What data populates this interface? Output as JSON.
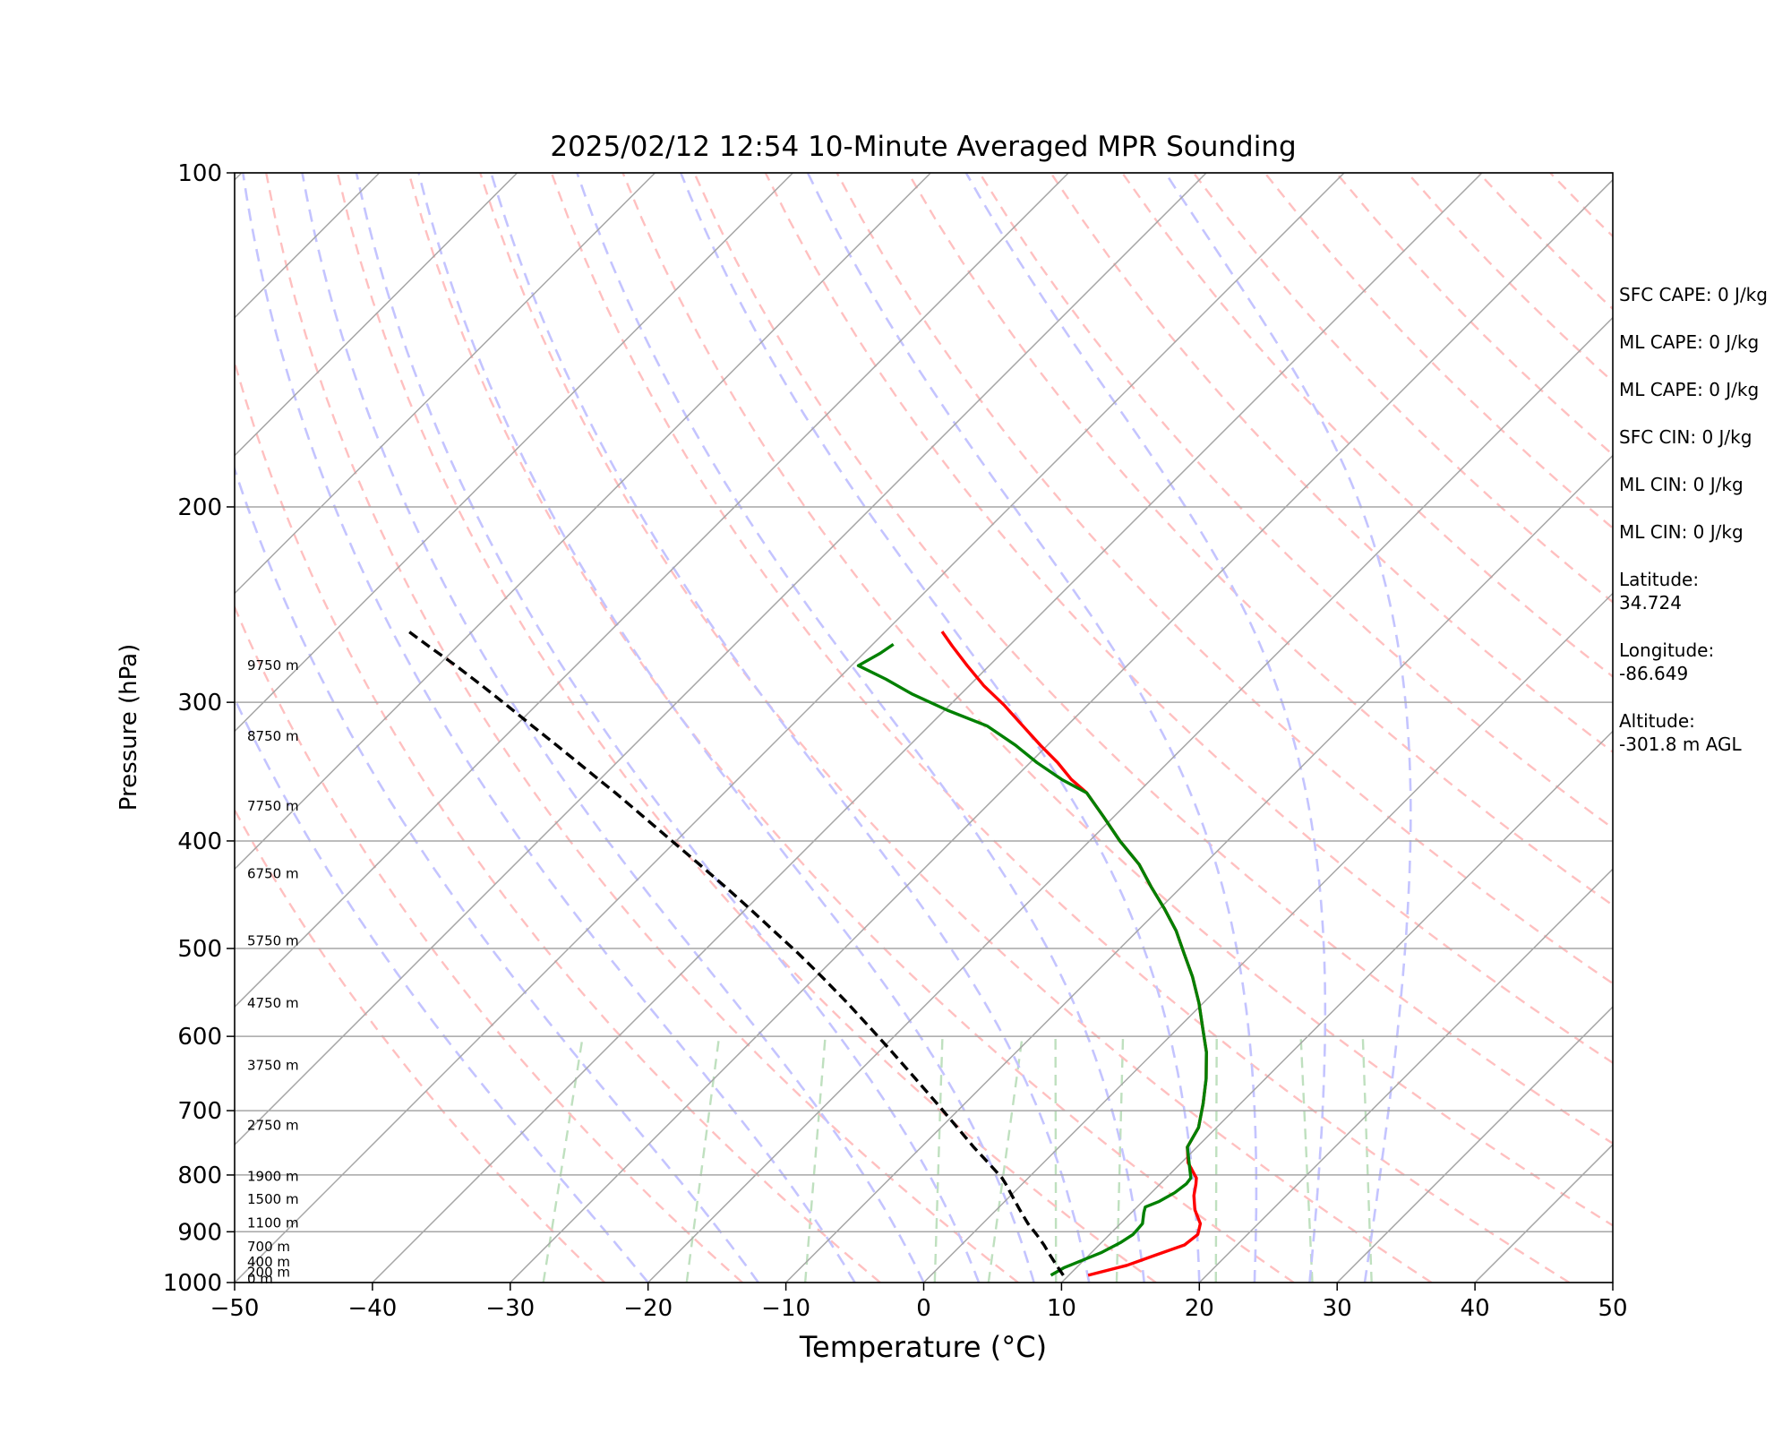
{
  "chart_data": {
    "type": "skew-t",
    "title": "2025/02/12 12:54 10-Minute Averaged MPR Sounding",
    "xlabel": "Temperature (°C)",
    "ylabel": "Pressure (hPa)",
    "xlim": [
      -50,
      50
    ],
    "ylim": [
      1000,
      100
    ],
    "y_scale": "log",
    "x_ticks": [
      "−50",
      "−40",
      "−30",
      "−20",
      "−10",
      "0",
      "10",
      "20",
      "30",
      "40",
      "50"
    ],
    "y_ticks": [
      "100",
      "200",
      "300",
      "400",
      "500",
      "600",
      "700",
      "800",
      "900",
      "1000"
    ],
    "grid": true,
    "height_labels": [
      {
        "label": "0 m",
        "pressure": 993
      },
      {
        "label": "200 m",
        "pressure": 979
      },
      {
        "label": "400 m",
        "pressure": 958
      },
      {
        "label": "700 m",
        "pressure": 928
      },
      {
        "label": "1100 m",
        "pressure": 884
      },
      {
        "label": "1500 m",
        "pressure": 841
      },
      {
        "label": "1900 m",
        "pressure": 802
      },
      {
        "label": "2750 m",
        "pressure": 722
      },
      {
        "label": "3750 m",
        "pressure": 637
      },
      {
        "label": "4750 m",
        "pressure": 560
      },
      {
        "label": "5750 m",
        "pressure": 492
      },
      {
        "label": "6750 m",
        "pressure": 428
      },
      {
        "label": "7750 m",
        "pressure": 372
      },
      {
        "label": "8750 m",
        "pressure": 322
      },
      {
        "label": "9750 m",
        "pressure": 278
      }
    ],
    "series": [
      {
        "color": "#ff0000",
        "style": "solid",
        "points": [
          [
            11.4,
            985
          ],
          [
            13.5,
            965
          ],
          [
            14.8,
            945
          ],
          [
            16.2,
            925
          ],
          [
            16.4,
            905
          ],
          [
            15.8,
            885
          ],
          [
            14.4,
            860
          ],
          [
            13.3,
            835
          ],
          [
            12.6,
            815
          ],
          [
            12.2,
            805
          ],
          [
            10.5,
            780
          ],
          [
            9.3,
            755
          ],
          [
            8.7,
            725
          ],
          [
            7.3,
            690
          ],
          [
            5.7,
            655
          ],
          [
            3.8,
            620
          ],
          [
            1.8,
            590
          ],
          [
            -0.3,
            560
          ],
          [
            -2.7,
            530
          ],
          [
            -5.0,
            505
          ],
          [
            -7.2,
            482
          ],
          [
            -9.7,
            460
          ],
          [
            -12.2,
            440
          ],
          [
            -14.7,
            420
          ],
          [
            -17.8,
            400
          ],
          [
            -20.8,
            380
          ],
          [
            -23.7,
            362
          ],
          [
            -25.8,
            352
          ],
          [
            -28.0,
            340
          ],
          [
            -30.5,
            328
          ],
          [
            -33.2,
            315
          ],
          [
            -36.0,
            302
          ],
          [
            -38.9,
            290
          ],
          [
            -41.6,
            278
          ],
          [
            -44.1,
            267
          ],
          [
            -45.9,
            259
          ]
        ]
      },
      {
        "color": "#008000",
        "style": "solid",
        "points": [
          [
            8.7,
            985
          ],
          [
            9.1,
            970
          ],
          [
            9.9,
            955
          ],
          [
            10.7,
            940
          ],
          [
            11.4,
            920
          ],
          [
            11.7,
            905
          ],
          [
            11.6,
            885
          ],
          [
            10.9,
            865
          ],
          [
            10.6,
            855
          ],
          [
            11.2,
            845
          ],
          [
            11.7,
            830
          ],
          [
            11.9,
            815
          ],
          [
            11.8,
            805
          ],
          [
            9.3,
            755
          ],
          [
            8.7,
            725
          ],
          [
            7.3,
            690
          ],
          [
            5.7,
            655
          ],
          [
            3.8,
            620
          ],
          [
            1.8,
            590
          ],
          [
            -0.3,
            560
          ],
          [
            -2.7,
            530
          ],
          [
            -5.0,
            505
          ],
          [
            -7.2,
            482
          ],
          [
            -9.7,
            460
          ],
          [
            -12.2,
            440
          ],
          [
            -14.7,
            420
          ],
          [
            -17.8,
            400
          ],
          [
            -20.8,
            380
          ],
          [
            -23.7,
            362
          ],
          [
            -26.5,
            352
          ],
          [
            -29.5,
            340
          ],
          [
            -32.3,
            328
          ],
          [
            -35.8,
            315
          ],
          [
            -39.8,
            305
          ],
          [
            -43.5,
            295
          ],
          [
            -46.5,
            286
          ],
          [
            -49.5,
            278
          ],
          [
            -48.8,
            271
          ],
          [
            -48.5,
            266
          ]
        ]
      },
      {
        "color": "#000000",
        "style": "dashed",
        "points": [
          [
            9.6,
            985
          ],
          [
            8.4,
            965
          ],
          [
            7.2,
            945
          ],
          [
            6.0,
            925
          ],
          [
            4.7,
            905
          ],
          [
            3.3,
            885
          ],
          [
            1.7,
            860
          ],
          [
            0.1,
            835
          ],
          [
            -1.2,
            815
          ],
          [
            -1.9,
            805
          ],
          [
            -4.0,
            780
          ],
          [
            -6.2,
            755
          ],
          [
            -8.8,
            725
          ],
          [
            -12.0,
            690
          ],
          [
            -15.4,
            655
          ],
          [
            -19.0,
            620
          ],
          [
            -22.3,
            590
          ],
          [
            -25.8,
            560
          ],
          [
            -29.6,
            530
          ],
          [
            -33.0,
            505
          ],
          [
            -36.4,
            482
          ],
          [
            -39.8,
            460
          ],
          [
            -43.1,
            440
          ],
          [
            -46.6,
            420
          ],
          [
            -50.3,
            400
          ],
          [
            -54.2,
            380
          ],
          [
            -57.9,
            362
          ],
          [
            -60.1,
            352
          ],
          [
            -62.8,
            340
          ],
          [
            -65.6,
            328
          ],
          [
            -68.8,
            315
          ],
          [
            -72.1,
            302
          ],
          [
            -75.3,
            290
          ],
          [
            -78.7,
            278
          ],
          [
            -82.1,
            267
          ],
          [
            -84.6,
            259
          ]
        ]
      }
    ]
  },
  "side_panel": {
    "sfc_cape": "SFC CAPE: 0 J/kg",
    "ml_cape_1": "ML CAPE: 0 J/kg",
    "ml_cape_2": "ML CAPE: 0 J/kg",
    "sfc_cin": "SFC CIN: 0 J/kg",
    "ml_cin_1": "ML CIN: 0 J/kg",
    "ml_cin_2": "ML CIN: 0 J/kg",
    "latitude_label": "Latitude:",
    "latitude_value": "34.724",
    "longitude_label": "Longitude:",
    "longitude_value": "-86.649",
    "altitude_label": "Altitude:",
    "altitude_value": "-301.8 m AGL"
  },
  "colors": {
    "isotherm": "#a6a6a6",
    "dry_adiabat": "#ffc0c0",
    "moist_adiabat": "#c4c4ff",
    "mixing_ratio": "#bfe0bf"
  }
}
